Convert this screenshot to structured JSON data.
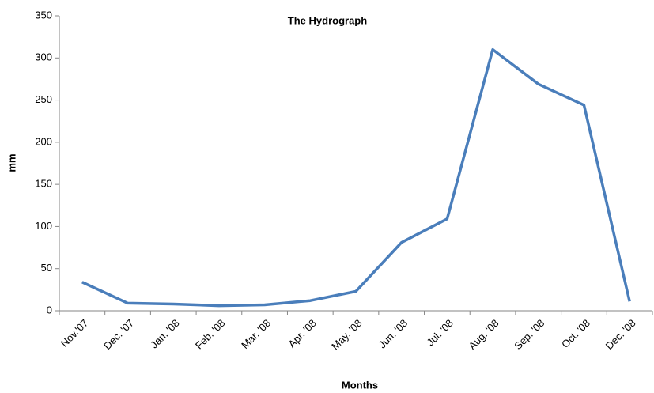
{
  "chart_data": {
    "type": "line",
    "title": "The Hydrograph",
    "x_label": "Months",
    "y_label": "mm",
    "categories": [
      "Nov.'07",
      "Dec. '07",
      "Jan. '08",
      "Feb. '08",
      "Mar. '08",
      "Apr. '08",
      "May. '08",
      "Jun. '08",
      "Jul. '08",
      "Aug. '08",
      "Sep. '08",
      "Oct. '08",
      "Dec. '08"
    ],
    "series": [
      {
        "name": "mm",
        "color": "#4a7ebb",
        "values": [
          34,
          9,
          8,
          6,
          7,
          12,
          23,
          81,
          109,
          310,
          269,
          244,
          11
        ]
      }
    ],
    "ylim": [
      0,
      350
    ],
    "yticks": [
      0,
      50,
      100,
      150,
      200,
      250,
      300,
      350
    ],
    "grid": false
  }
}
